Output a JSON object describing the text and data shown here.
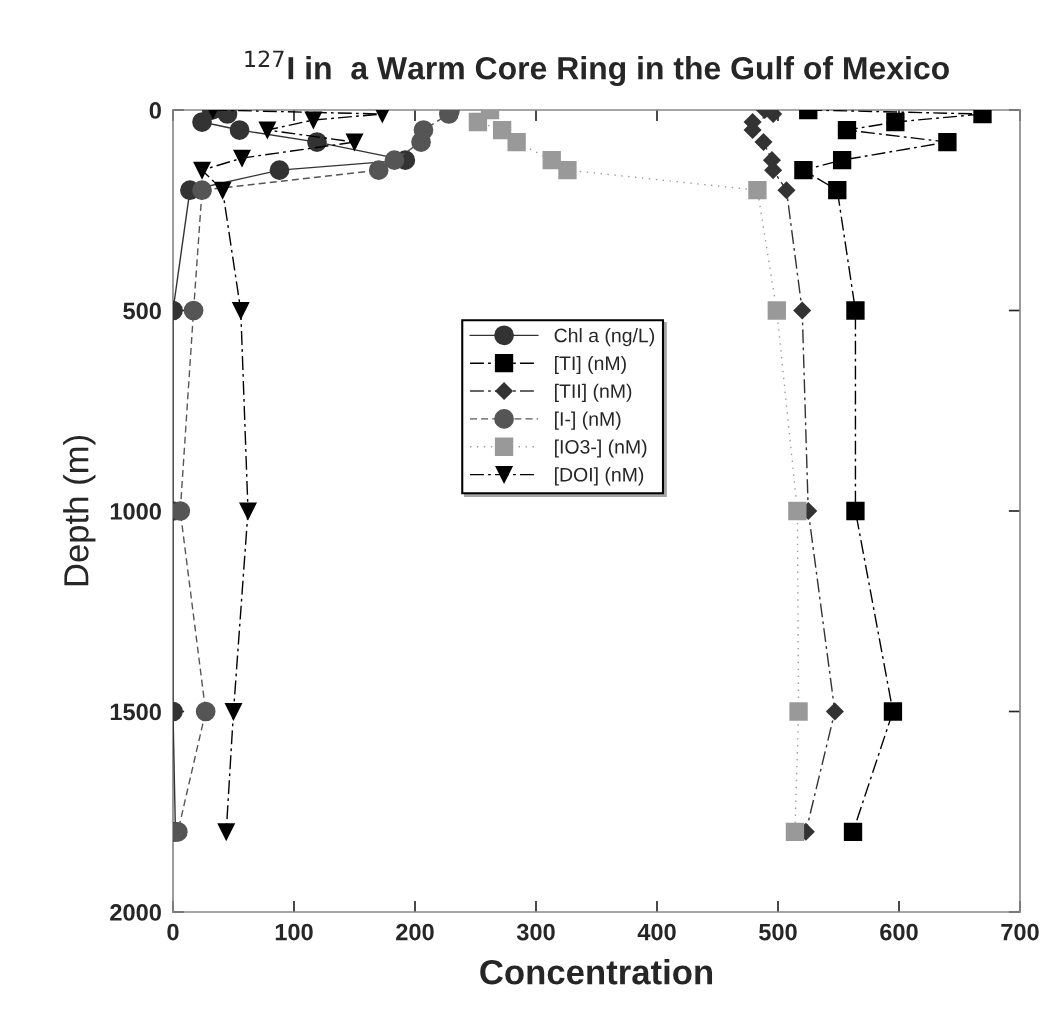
{
  "chart_data": {
    "type": "line",
    "title": "$^{127}$I in  a Warm Core Ring in the Gulf of Mexico",
    "xlabel": "Concentration",
    "ylabel": "Depth (m)",
    "xlim": [
      0,
      700
    ],
    "xticks": [
      0,
      100,
      200,
      300,
      400,
      500,
      600,
      700
    ],
    "ylim": [
      2000,
      0
    ],
    "yticks": [
      0,
      500,
      1000,
      1500,
      2000
    ],
    "grid": false,
    "legend": "center",
    "series": [
      {
        "name": "Chl a (ng/L)",
        "color": "#333333",
        "marker": "circle",
        "line_style": "solid",
        "x": [
          32,
          45,
          24,
          55,
          119,
          192,
          88,
          14,
          0,
          0,
          0,
          2
        ],
        "values": [
          0,
          10,
          30,
          50,
          80,
          125,
          150,
          200,
          500,
          1000,
          1500,
          1800
        ]
      },
      {
        "name": "[TI] (nM)",
        "color": "#000000",
        "marker": "square",
        "line_style": "dashdot",
        "x": [
          525,
          669,
          597,
          557,
          640,
          553,
          521,
          549,
          564,
          564,
          595,
          562
        ],
        "values": [
          0,
          10,
          30,
          50,
          80,
          125,
          150,
          200,
          500,
          1000,
          1500,
          1800
        ]
      },
      {
        "name": "[TII] (nM)",
        "color": "#333333",
        "marker": "diamond",
        "line_style": "dashdot",
        "x": [
          489,
          496,
          479,
          479,
          488,
          495,
          496,
          507,
          520,
          525,
          547,
          523
        ],
        "values": [
          0,
          10,
          30,
          50,
          80,
          125,
          150,
          200,
          500,
          1000,
          1500,
          1800
        ]
      },
      {
        "name": "[I-] (nM)",
        "color": "#555555",
        "marker": "circle",
        "line_style": "dashed",
        "x": [
          229,
          228,
          207,
          205,
          183,
          170,
          24,
          17,
          6,
          27,
          4
        ],
        "values": [
          0,
          10,
          50,
          80,
          125,
          150,
          200,
          500,
          1000,
          1500,
          1800
        ]
      },
      {
        "name": "[IO3-] (nM)",
        "color": "#999999",
        "marker": "square",
        "line_style": "dotted",
        "x": [
          262,
          252,
          272,
          284,
          313,
          326,
          483,
          499,
          516,
          517,
          514
        ],
        "values": [
          0,
          30,
          50,
          80,
          125,
          150,
          200,
          500,
          1000,
          1500,
          1800
        ]
      },
      {
        "name": "[DOI] (nM)",
        "color": "#000000",
        "marker": "triangle",
        "line_style": "dashdot",
        "x": [
          33,
          173,
          116,
          78,
          150,
          57,
          24,
          41,
          56,
          62,
          50,
          44
        ],
        "values": [
          0,
          10,
          25,
          50,
          80,
          120,
          150,
          200,
          500,
          1000,
          1500,
          1800
        ]
      }
    ]
  }
}
